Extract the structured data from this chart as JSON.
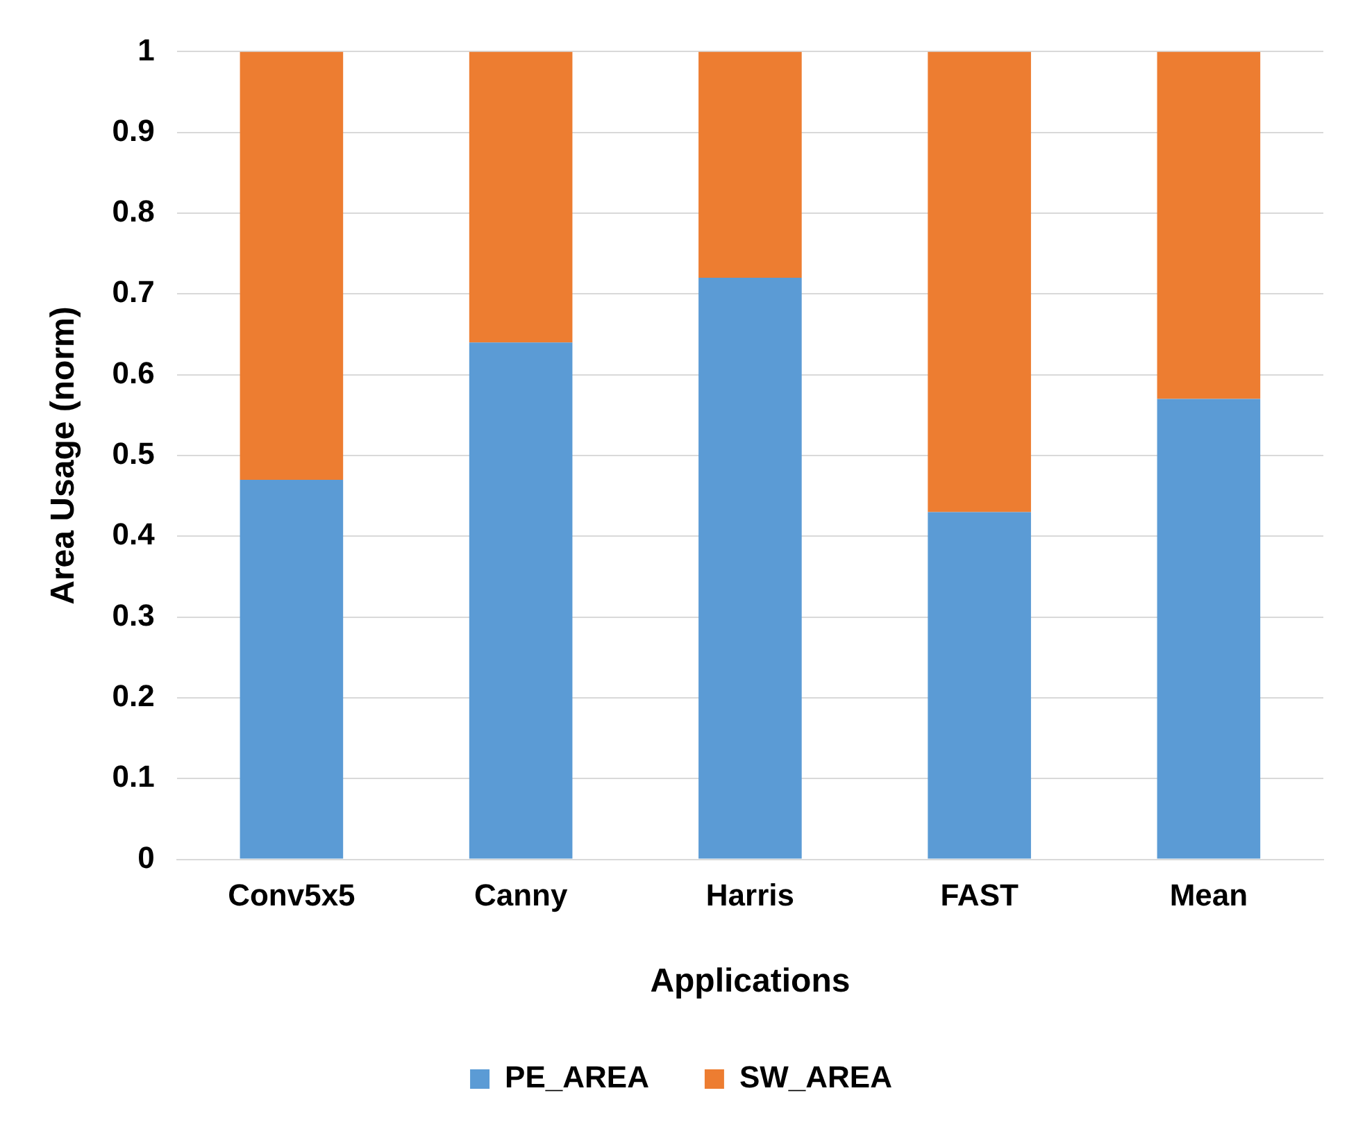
{
  "chart_data": {
    "type": "bar",
    "xlabel": "Applications",
    "ylabel": "Area Usage (norm)",
    "categories": [
      "Conv5x5",
      "Canny",
      "Harris",
      "FAST",
      "Mean"
    ],
    "stacked": true,
    "series": [
      {
        "name": "PE_AREA",
        "color": "#5b9bd5",
        "values": [
          0.47,
          0.64,
          0.72,
          0.43,
          0.57
        ]
      },
      {
        "name": "SW_AREA",
        "color": "#ed7d31",
        "values": [
          0.53,
          0.36,
          0.28,
          0.57,
          0.43
        ]
      }
    ],
    "ylim": [
      0,
      1
    ],
    "yticks": [
      0,
      0.1,
      0.2,
      0.3,
      0.4,
      0.5,
      0.6,
      0.7,
      0.8,
      0.9,
      1
    ],
    "grid": "y",
    "legend": "bottom"
  }
}
